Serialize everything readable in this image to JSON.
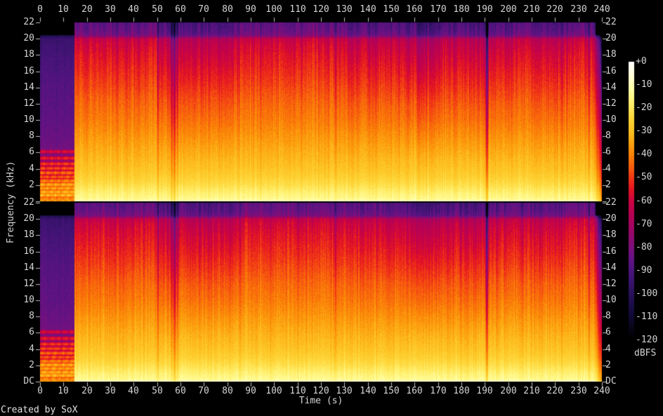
{
  "figure": {
    "credit": "Created by SoX",
    "background": "#000000",
    "text_color": "#d4d4d4",
    "tick_color": "#bebebe"
  },
  "chart_data": {
    "type": "heatmap",
    "subtype": "audio-spectrogram",
    "channels": [
      "channel-1",
      "channel-2"
    ],
    "xlabel": "Time (s)",
    "ylabel": "Frequency (kHz)",
    "x_range_s": [
      0,
      240
    ],
    "y_range_khz": [
      0,
      22
    ],
    "grid": "off",
    "x_ticks": [
      "0",
      "10",
      "20",
      "30",
      "40",
      "50",
      "60",
      "70",
      "80",
      "90",
      "100",
      "110",
      "120",
      "130",
      "140",
      "150",
      "160",
      "170",
      "180",
      "190",
      "200",
      "210",
      "220",
      "230",
      "240"
    ],
    "y_tick_labels_top_chart": [
      "22",
      "20",
      "18",
      "16",
      "14",
      "12",
      "10",
      "8",
      "6",
      "4",
      "2"
    ],
    "y_tick_labels_bottom_chart": [
      "22",
      "20",
      "18",
      "16",
      "14",
      "12",
      "10",
      "8",
      "6",
      "4",
      "2",
      "DC"
    ],
    "colorbar": {
      "unit_label": "dBFS",
      "tick_labels": [
        "+0",
        "-10",
        "-20",
        "-30",
        "-40",
        "-50",
        "-60",
        "-70",
        "-80",
        "-90",
        "-100",
        "-110",
        "-120"
      ],
      "range_db": [
        0,
        -120
      ],
      "palette": [
        [
          0.0,
          "#ffffff"
        ],
        [
          0.05,
          "#ffffd9"
        ],
        [
          0.1,
          "#ffffa5"
        ],
        [
          0.15,
          "#ffef6c"
        ],
        [
          0.2,
          "#fed73a"
        ],
        [
          0.25,
          "#fdc121"
        ],
        [
          0.3,
          "#fc9d0d"
        ],
        [
          0.34,
          "#fa7d08"
        ],
        [
          0.38,
          "#f75c0e"
        ],
        [
          0.42,
          "#f03417"
        ],
        [
          0.46,
          "#e31423"
        ],
        [
          0.5,
          "#cc0442"
        ],
        [
          0.54,
          "#bc0250"
        ],
        [
          0.58,
          "#a8045e"
        ],
        [
          0.63,
          "#8f0a6e"
        ],
        [
          0.67,
          "#7a107c"
        ],
        [
          0.71,
          "#641384"
        ],
        [
          0.75,
          "#4c147e"
        ],
        [
          0.79,
          "#3a136e"
        ],
        [
          0.83,
          "#2a115c"
        ],
        [
          0.88,
          "#190d45"
        ],
        [
          0.92,
          "#0f0931"
        ],
        [
          0.96,
          "#060515"
        ],
        [
          1.0,
          "#000000"
        ]
      ]
    },
    "content": {
      "intro_end_s": 14.6,
      "outro_start_s": 236.8,
      "music_profile_db": [
        [
          0,
          -13
        ],
        [
          0.5,
          -15
        ],
        [
          1,
          -17
        ],
        [
          2,
          -22
        ],
        [
          3,
          -26
        ],
        [
          4,
          -29
        ],
        [
          6,
          -33
        ],
        [
          8,
          -37
        ],
        [
          10,
          -41
        ],
        [
          12,
          -44
        ],
        [
          14,
          -48
        ],
        [
          16,
          -52
        ],
        [
          18,
          -56
        ],
        [
          19.5,
          -60
        ],
        [
          20,
          -63
        ],
        [
          20.4,
          -80
        ],
        [
          21,
          -84
        ],
        [
          22,
          -87
        ]
      ],
      "intro_profile_db": [
        [
          0,
          -62
        ],
        [
          1,
          -70
        ],
        [
          3,
          -76
        ],
        [
          6,
          -82
        ],
        [
          10,
          -86
        ],
        [
          14,
          -88
        ],
        [
          18,
          -92
        ],
        [
          20,
          -95
        ],
        [
          20.4,
          -104
        ],
        [
          20.5,
          -120
        ],
        [
          22,
          -120
        ]
      ],
      "intro_stripes": [
        {
          "khz": 0.05,
          "db": -36
        },
        {
          "khz": 0.3,
          "db": -38
        },
        {
          "khz": 0.75,
          "db": -32
        },
        {
          "khz": 1.15,
          "db": -33
        },
        {
          "khz": 1.6,
          "db": -35
        },
        {
          "khz": 2.05,
          "db": -34
        },
        {
          "khz": 2.5,
          "db": -40
        },
        {
          "khz": 3.0,
          "db": -46
        },
        {
          "khz": 3.5,
          "db": -44
        },
        {
          "khz": 4.05,
          "db": -48
        },
        {
          "khz": 4.6,
          "db": -50
        },
        {
          "khz": 5.3,
          "db": -54
        },
        {
          "khz": 6.1,
          "db": -58
        }
      ],
      "quiet_events": [
        {
          "t": 50.4,
          "depth_db": 16,
          "width_s": 0.4
        },
        {
          "t": 56.3,
          "depth_db": 20,
          "width_s": 0.35
        },
        {
          "t": 57.5,
          "depth_db": 26,
          "width_s": 0.45
        },
        {
          "t": 58.8,
          "depth_db": 16,
          "width_s": 0.3
        },
        {
          "t": 126.3,
          "depth_db": 14,
          "width_s": 0.3
        },
        {
          "t": 190.9,
          "depth_db": 42,
          "width_s": 0.5
        },
        {
          "t": 223.0,
          "depth_db": 10,
          "width_s": 0.3
        },
        {
          "t": 234.6,
          "depth_db": 12,
          "width_s": 0.35
        }
      ],
      "hf_level_curve_db": [
        [
          15,
          0
        ],
        [
          50,
          0
        ],
        [
          53,
          -4
        ],
        [
          84,
          -4
        ],
        [
          87,
          0
        ],
        [
          128,
          0
        ],
        [
          133,
          -2
        ],
        [
          155,
          -3
        ],
        [
          158,
          -7
        ],
        [
          170,
          -7
        ],
        [
          172,
          -3
        ],
        [
          185,
          -4
        ],
        [
          189,
          -6
        ],
        [
          196,
          -1
        ],
        [
          199,
          -4
        ],
        [
          205,
          -1
        ],
        [
          214,
          -3
        ],
        [
          222,
          -2
        ],
        [
          228,
          0
        ],
        [
          236,
          0
        ]
      ],
      "channel_seeds": [
        1013,
        2027
      ]
    }
  }
}
